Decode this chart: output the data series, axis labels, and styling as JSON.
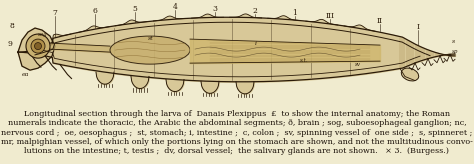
{
  "background_color": "#f0ebcf",
  "fig_width": 4.74,
  "fig_height": 1.64,
  "dpi": 100,
  "body_color": "#d8c898",
  "body_edge": "#3a2a10",
  "inner_color": "#c8b070",
  "dark": "#2a1a08",
  "mid": "#7a5a20",
  "caption_lines": [
    "Longitudinal section through the larva of  Danais Plexippus  £  to show the internal anatomy; the Roman",
    "numerals indicate the thoracic, the Arabic the abdominal segments; ð, brain ; sog, suboesophageal ganglion; nc,",
    "nervous cord ;  oe, oesophagus ;  st, stomach; i, intestine ;  c, colon ;  sv, spinning vessel of  one side ;  s, spinneret ;",
    "mr, malpighian vessel, of which only the portions lying on the stomach are shown, and not the multitudinous convo-",
    "lutions on the intestine; t, testis ;  dv, dorsal vessel;  the salivary glands are not shown.   × 3.  (Burgess.)"
  ],
  "caption_fontsize": 5.8,
  "caption_color": "#1a1008"
}
